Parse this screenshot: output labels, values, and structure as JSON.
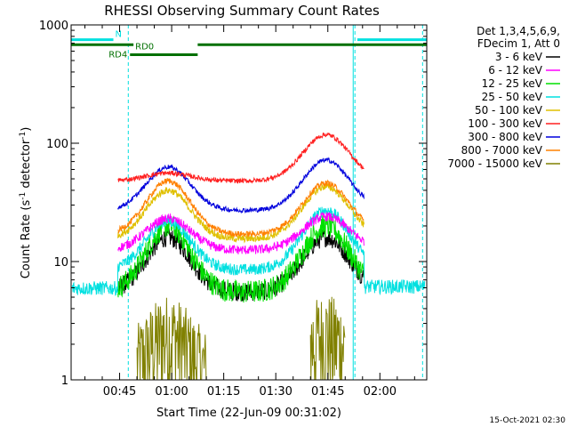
{
  "chart_data": {
    "type": "line",
    "title": "RHESSI Observing Summary Count Rates",
    "xlabel": "Start Time (22-Jun-09 00:31:02)",
    "ylabel_main": "Count Rate (s",
    "ylabel_sup1": "-1",
    "ylabel_mid": " detector",
    "ylabel_sup2": "-1",
    "ylabel_end": ")",
    "yscale": "log",
    "ylim": [
      1,
      1000
    ],
    "xlim_minutes": [
      31.03,
      133.5
    ],
    "y_ticks": [
      {
        "value": 1,
        "label": "1"
      },
      {
        "value": 10,
        "label": "10"
      },
      {
        "value": 100,
        "label": "100"
      },
      {
        "value": 1000,
        "label": "1000"
      }
    ],
    "x_ticks": [
      {
        "minutes": 45,
        "label": "00:45"
      },
      {
        "minutes": 60,
        "label": "01:00"
      },
      {
        "minutes": 75,
        "label": "01:15"
      },
      {
        "minutes": 90,
        "label": "01:30"
      },
      {
        "minutes": 105,
        "label": "01:45"
      },
      {
        "minutes": 120,
        "label": "02:00"
      }
    ],
    "legend_header": [
      "Det 1,3,4,5,6,9,",
      "FDecim 1, Att 0"
    ],
    "legend_position": "right",
    "series": [
      {
        "name": "3 - 6 keV",
        "color": "#000000",
        "base": 5.5,
        "peak1": 16,
        "peak2": 16,
        "noise": 0.08
      },
      {
        "name": "6 - 12 keV",
        "color": "#ff00ff",
        "base": 12.5,
        "peak1": 23,
        "peak2": 24,
        "noise": 0.04
      },
      {
        "name": "12 - 25 keV",
        "color": "#00e000",
        "base": 5.5,
        "peak1": 20,
        "peak2": 20,
        "noise": 0.1
      },
      {
        "name": "25 - 50 keV",
        "color": "#00e0e0",
        "base": 8.5,
        "peak1": 22,
        "peak2": 27,
        "noise": 0.05
      },
      {
        "name": "50 - 100 keV",
        "color": "#e0c000",
        "base": 15.5,
        "peak1": 40,
        "peak2": 43,
        "noise": 0.03
      },
      {
        "name": "100 - 300 keV",
        "color": "#ff2020",
        "base": 48,
        "peak1": 56,
        "peak2": 118,
        "noise": 0.02
      },
      {
        "name": "300 - 800 keV",
        "color": "#0000dd",
        "base": 27,
        "peak1": 63,
        "peak2": 72,
        "noise": 0.02
      },
      {
        "name": "800 - 7000 keV",
        "color": "#ff8000",
        "base": 17,
        "peak1": 48,
        "peak2": 46,
        "noise": 0.025
      },
      {
        "name": "7000 - 15000 keV",
        "color": "#808000",
        "base": 1,
        "peak1": 2.5,
        "peak2": 2.5,
        "noise": 0.2
      }
    ],
    "bars": [
      {
        "label": "N",
        "color": "#00e0e0",
        "segments": [
          [
            31.03,
            43.2
          ],
          [
            113.5,
            133.5
          ]
        ],
        "value": 750
      },
      {
        "label": "RD0",
        "color": "#007000",
        "segments": [
          [
            31.03,
            49
          ],
          [
            67.5,
            133.5
          ]
        ],
        "value": 680
      },
      {
        "label": "RD4",
        "color": "#007000",
        "segments": [
          [
            48,
            67.5
          ]
        ],
        "value": 560
      }
    ],
    "vlines_dashed": [
      47.5,
      112.8,
      132.3
    ],
    "vlines_solid": [
      112.3
    ]
  },
  "footer": {
    "timestamp": "15-Oct-2021 02:30"
  }
}
